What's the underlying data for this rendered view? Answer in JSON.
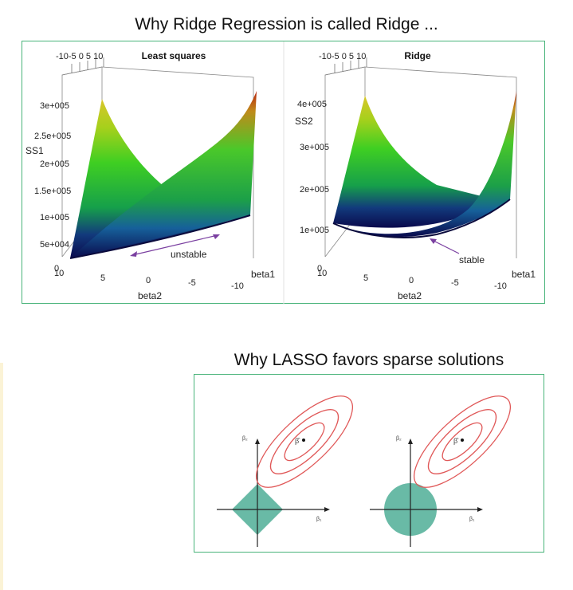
{
  "ridge_section": {
    "title": "Why Ridge Regression is called Ridge ...",
    "left_plot": {
      "title": "Least squares",
      "z_label": "SS1",
      "z_ticks": [
        "3e+005",
        "2.5e+005",
        "2e+005",
        "1.5e+005",
        "1e+005",
        "5e+004",
        "0"
      ],
      "top_ticks": "-10-5 0 5 10",
      "x_label": "beta2",
      "y_label": "beta1",
      "x_ticks": [
        "10",
        "5",
        "0",
        "-5",
        "-10"
      ],
      "annotation": "unstable"
    },
    "right_plot": {
      "title": "Ridge",
      "z_label": "SS2",
      "z_ticks": [
        "4e+005",
        "3e+005",
        "2e+005",
        "1e+005",
        "0"
      ],
      "top_ticks": "-10-5 0 5 10",
      "x_label": "beta2",
      "y_label": "beta1",
      "x_ticks": [
        "10",
        "5",
        "0",
        "-5",
        "-10"
      ],
      "annotation": "stable"
    }
  },
  "lasso_section": {
    "title": "Why LASSO favors sparse solutions",
    "left_diagram": {
      "axis_x": "β₁",
      "axis_y": "β₂",
      "estimate": "β̂",
      "constraint": "diamond"
    },
    "right_diagram": {
      "axis_x": "β₁",
      "axis_y": "β₂",
      "estimate": "β̂",
      "constraint": "circle"
    }
  },
  "colors": {
    "frame": "#49b47a",
    "contour": "#e05858",
    "constraint": "#4fae97",
    "arrow": "#7a3fa0"
  }
}
